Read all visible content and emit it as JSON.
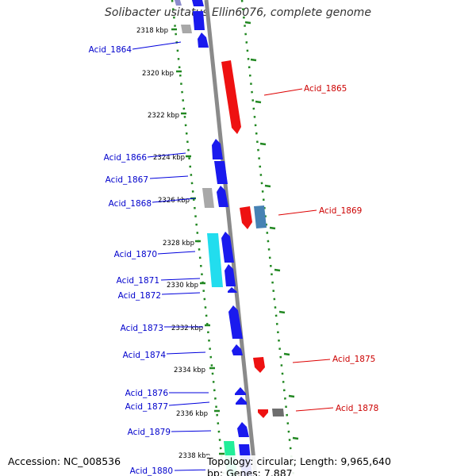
{
  "title": "Solibacter usitatus Ellin6076, complete genome",
  "footer": {
    "accession_label": "Accession:",
    "accession_value": "NC_008536",
    "topology_label": "Topology:",
    "topology_value": "circular;",
    "length_label": "Length:",
    "length_value": "9,965,640 bp;",
    "genes_label": "Genes:",
    "genes_value": "7,887"
  },
  "colors": {
    "backbone": "#8a8a8a",
    "forward": "#1a1aee",
    "reverse": "#ee1111",
    "grey": "#a8a8a8",
    "cyan": "#22ddee",
    "steelblue": "#4682b4",
    "seagreen": "#22ee99",
    "dotted_track": "#228822",
    "label_forward": "#0000cc",
    "label_reverse": "#cc0000"
  },
  "ticks": [
    "2318 kbp",
    "2320 kbp",
    "2322 kbp",
    "2324 kbp",
    "2326 kbp",
    "2328 kbp",
    "2330 kbp",
    "2332 kbp",
    "2334 kbp",
    "2336 kbp",
    "2338 kbp"
  ],
  "genes_left": [
    "Acid_1864",
    "Acid_1866",
    "Acid_1867",
    "Acid_1868",
    "Acid_1870",
    "Acid_1871",
    "Acid_1872",
    "Acid_1873",
    "Acid_1874",
    "Acid_1876",
    "Acid_1877",
    "Acid_1879",
    "Acid_1880"
  ],
  "genes_right": [
    "Acid_1865",
    "Acid_1869",
    "Acid_1875",
    "Acid_1878"
  ]
}
